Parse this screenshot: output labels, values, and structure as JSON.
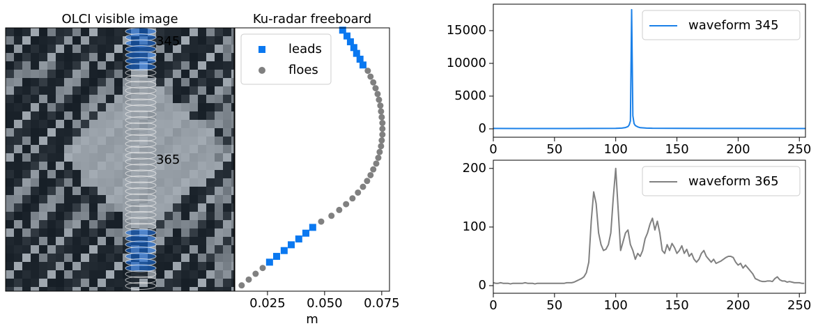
{
  "chart_data": [
    {
      "type": "image",
      "title": "OLCI visible image",
      "annotations": [
        "345",
        "365"
      ],
      "annotation_color": "#ff0000"
    },
    {
      "type": "scatter",
      "title": "Ku-radar freeboard",
      "xlabel": "m",
      "xlim": [
        0.0107,
        0.0784
      ],
      "xticks": [
        0.025,
        {
          "value": 0.05,
          "label": "0.050"
        },
        0.075
      ],
      "ylim": [
        342.6,
        388
      ],
      "y_inverted": true,
      "legend": "upper left",
      "series": [
        {
          "name": "leads",
          "color": "#0a78f0",
          "marker": "square",
          "x": [
            0.0579,
            0.0598,
            0.0613,
            0.0628,
            0.064,
            0.0655,
            0.0668,
            0.0448,
            0.0418,
            0.0387,
            0.0354,
            0.0323,
            0.029,
            0.0259
          ],
          "values": [
            343,
            344,
            345,
            346,
            347,
            348,
            349,
            377,
            378,
            379,
            380,
            381,
            382,
            383
          ]
        },
        {
          "name": "floes",
          "color": "#808080",
          "marker": "circle",
          "x": [
            0.0689,
            0.0701,
            0.0713,
            0.0723,
            0.0732,
            0.0738,
            0.0744,
            0.0747,
            0.075,
            0.0753,
            0.0753,
            0.0753,
            0.075,
            0.0747,
            0.0741,
            0.0735,
            0.0726,
            0.0713,
            0.0701,
            0.0686,
            0.0668,
            0.0646,
            0.0622,
            0.0594,
            0.0564,
            0.053,
            0.0485,
            0.0229,
            0.0198,
            0.0168,
            0.0137
          ],
          "values": [
            350,
            351,
            352,
            353,
            354,
            355,
            356,
            357,
            358,
            359,
            360,
            361,
            362,
            363,
            364,
            365,
            366,
            367,
            368,
            369,
            370,
            371,
            372,
            373,
            374,
            375,
            376,
            384,
            385,
            386,
            387
          ]
        }
      ]
    },
    {
      "type": "line",
      "xlim": [
        0,
        255
      ],
      "xticks": [
        0,
        50,
        100,
        150,
        200,
        250
      ],
      "ylim": [
        -1280,
        19040
      ],
      "yticks": [
        0,
        5000,
        10000,
        15000
      ],
      "legend": "upper right",
      "series": [
        {
          "name": "waveform 345",
          "color": "#1a80e8",
          "x": [
            0,
            20,
            40,
            60,
            80,
            100,
            105,
            108,
            110,
            111,
            112,
            113,
            114,
            115,
            116,
            118,
            120,
            125,
            130,
            150,
            200,
            255
          ],
          "values": [
            60,
            50,
            55,
            50,
            60,
            80,
            120,
            200,
            350,
            600,
            1200,
            18200,
            2000,
            800,
            500,
            300,
            180,
            120,
            90,
            70,
            60,
            50
          ]
        }
      ]
    },
    {
      "type": "line",
      "xlim": [
        0,
        255
      ],
      "xticks": [
        0,
        50,
        100,
        150,
        200,
        250
      ],
      "ylim": [
        -13,
        214
      ],
      "yticks": [
        0,
        100,
        200
      ],
      "legend": "upper right",
      "series": [
        {
          "name": "waveform 365",
          "color": "#808080",
          "x": [
            0,
            2,
            4,
            6,
            8,
            10,
            12,
            14,
            16,
            18,
            20,
            22,
            24,
            26,
            28,
            30,
            32,
            34,
            36,
            38,
            40,
            42,
            44,
            46,
            48,
            50,
            52,
            54,
            56,
            58,
            60,
            62,
            64,
            66,
            68,
            70,
            72,
            74,
            76,
            78,
            80,
            82,
            84,
            86,
            88,
            90,
            92,
            94,
            96,
            98,
            100,
            102,
            104,
            106,
            108,
            110,
            112,
            114,
            116,
            118,
            120,
            122,
            124,
            126,
            128,
            130,
            132,
            134,
            136,
            138,
            140,
            142,
            144,
            146,
            148,
            150,
            152,
            154,
            156,
            158,
            160,
            162,
            164,
            166,
            168,
            170,
            172,
            174,
            176,
            178,
            180,
            182,
            184,
            186,
            188,
            190,
            192,
            194,
            196,
            198,
            200,
            202,
            204,
            206,
            208,
            210,
            212,
            214,
            216,
            218,
            220,
            222,
            224,
            226,
            228,
            230,
            232,
            234,
            236,
            238,
            240,
            242,
            244,
            246,
            248,
            250,
            252,
            254
          ],
          "values": [
            5,
            4,
            4,
            5,
            4,
            4,
            4,
            3,
            4,
            4,
            4,
            4,
            4,
            5,
            4,
            4,
            4,
            3,
            4,
            4,
            4,
            4,
            4,
            4,
            4,
            4,
            4,
            4,
            4,
            4,
            5,
            5,
            5,
            6,
            8,
            10,
            12,
            15,
            22,
            40,
            110,
            160,
            140,
            90,
            70,
            60,
            62,
            70,
            90,
            150,
            200,
            130,
            60,
            75,
            90,
            95,
            70,
            60,
            45,
            55,
            50,
            60,
            80,
            90,
            105,
            115,
            95,
            110,
            90,
            60,
            55,
            70,
            60,
            72,
            65,
            55,
            60,
            68,
            55,
            62,
            50,
            55,
            45,
            40,
            45,
            55,
            60,
            50,
            45,
            40,
            45,
            38,
            40,
            42,
            45,
            48,
            50,
            50,
            48,
            40,
            35,
            38,
            30,
            35,
            30,
            25,
            20,
            12,
            10,
            8,
            7,
            7,
            8,
            8,
            7,
            12,
            15,
            10,
            8,
            8,
            6,
            7,
            6,
            5,
            5,
            5,
            4,
            4
          ]
        }
      ]
    }
  ]
}
